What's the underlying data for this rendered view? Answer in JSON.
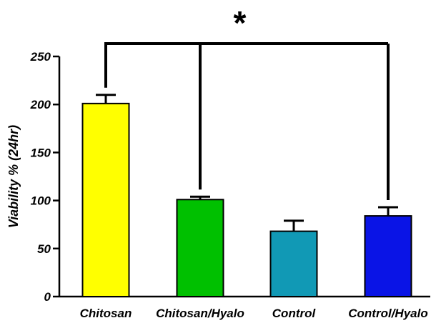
{
  "chart_data": {
    "type": "bar",
    "categories": [
      "Chitosan",
      "Chitosan/Hyalo",
      "Control",
      "Control/Hyalo"
    ],
    "values": [
      201,
      101,
      68,
      84
    ],
    "errors": [
      9,
      3,
      11,
      9
    ],
    "colors": [
      "#ffff00",
      "#00c000",
      "#1199b5",
      "#0a14e6"
    ],
    "ylabel": "Viability % (24hr)",
    "ylim": [
      0,
      250
    ],
    "yticks": [
      "0",
      "50",
      "100",
      "150",
      "200",
      "250"
    ],
    "significance": {
      "label": "*",
      "from": "Chitosan",
      "to": [
        "Chitosan/Hyalo",
        "Control/Hyalo"
      ]
    }
  }
}
